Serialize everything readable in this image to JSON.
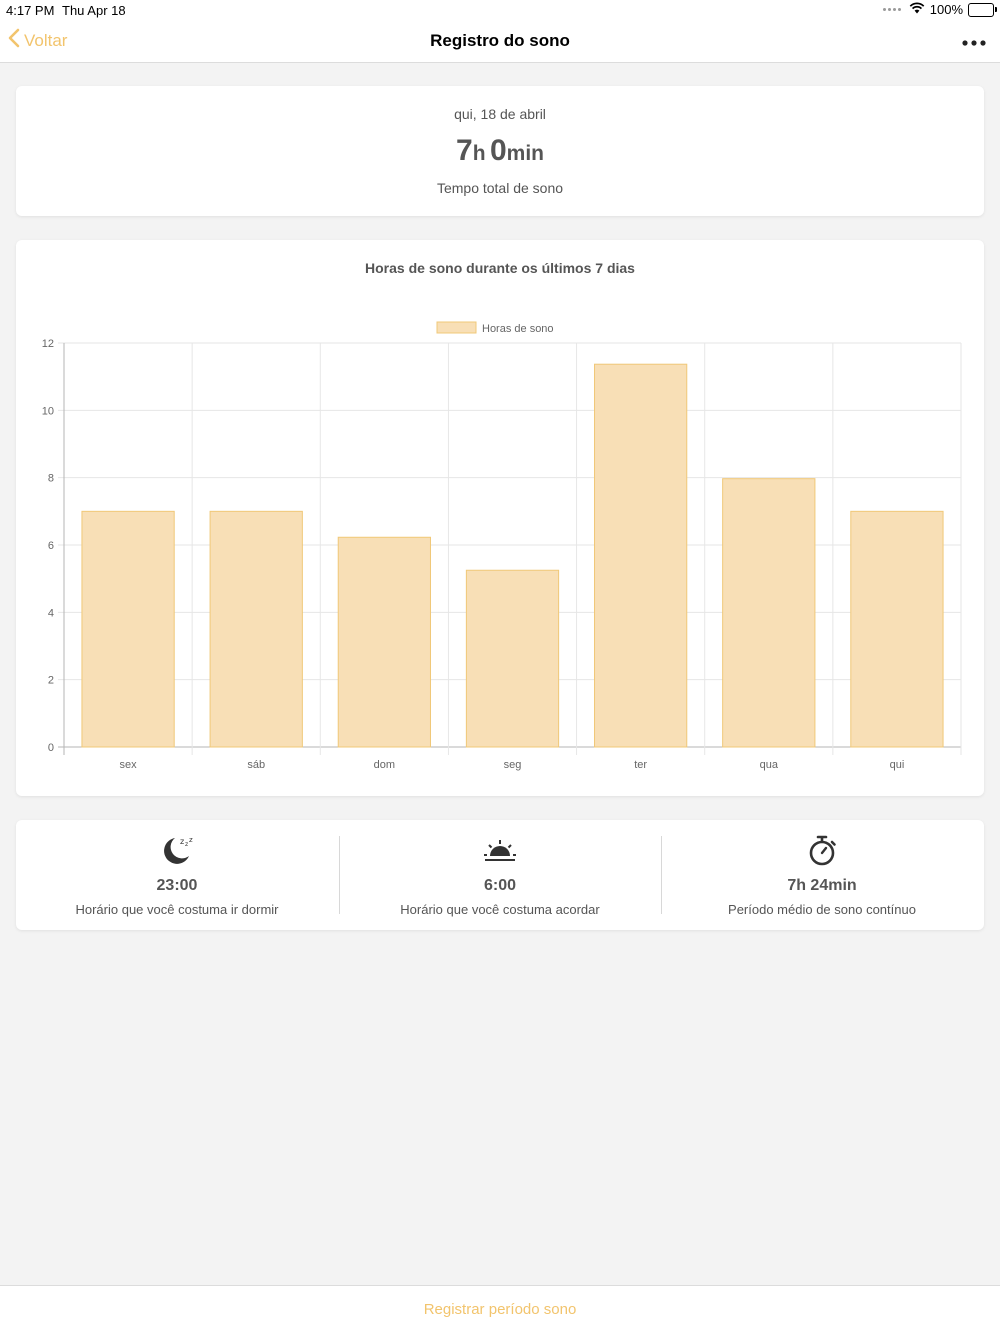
{
  "status_bar": {
    "time": "4:17 PM",
    "date": "Thu Apr 18",
    "battery": "100%"
  },
  "nav": {
    "back_label": "Voltar",
    "title": "Registro do sono"
  },
  "summary": {
    "date": "qui, 18 de abril",
    "hours": "7",
    "hours_unit": "h",
    "minutes": "0",
    "minutes_unit": "min",
    "label": "Tempo total de sono"
  },
  "chart_data": {
    "type": "bar",
    "title": "Horas de sono durante os últimos 7 dias",
    "categories": [
      "sex",
      "sáb",
      "dom",
      "seg",
      "ter",
      "qua",
      "qui"
    ],
    "series": [
      {
        "name": "Horas de sono",
        "values": [
          7,
          7,
          6.23,
          5.25,
          11.37,
          7.97,
          7
        ]
      }
    ],
    "ylim": [
      0,
      12
    ],
    "yticks": [
      0,
      2,
      4,
      6,
      8,
      10,
      12
    ],
    "grid": true,
    "legend": "top-center",
    "bar_fill": "#f8dfb6",
    "bar_stroke": "#f0c878"
  },
  "stats": [
    {
      "icon": "moon-zzz-icon",
      "value": "23:00",
      "label": "Horário que você costuma ir dormir"
    },
    {
      "icon": "sunrise-icon",
      "value": "6:00",
      "label": "Horário que você costuma acordar"
    },
    {
      "icon": "stopwatch-icon",
      "value": "7h 24min",
      "label": "Período médio de sono contínuo"
    }
  ],
  "bottom": {
    "register_label": "Registrar período sono"
  },
  "colors": {
    "accent": "#f2c46d",
    "background": "#f3f3f3"
  }
}
